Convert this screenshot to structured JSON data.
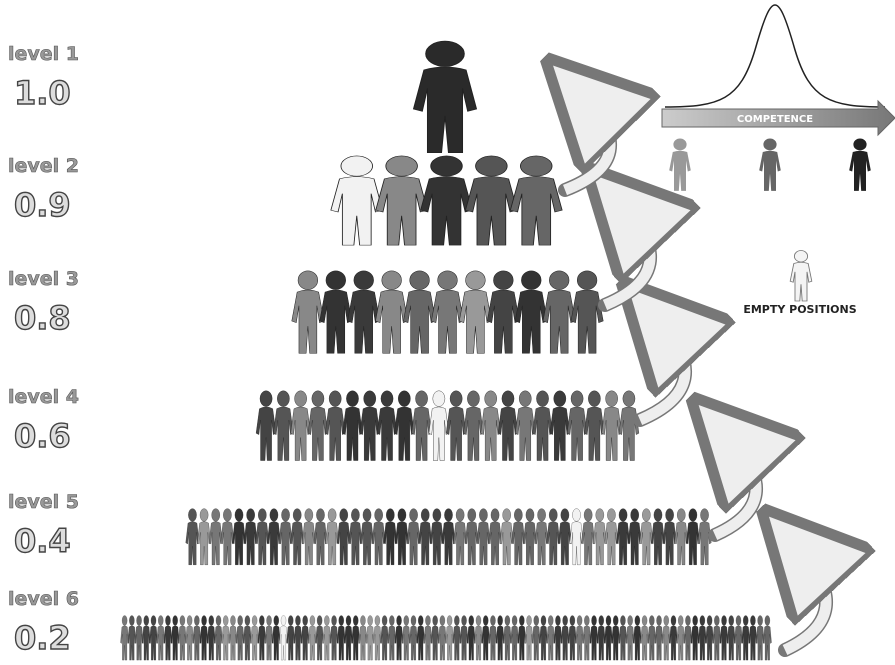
{
  "levels": [
    {
      "name": "level 1",
      "score": "1.0"
    },
    {
      "name": "level 2",
      "score": "0.9"
    },
    {
      "name": "level 3",
      "score": "0.8"
    },
    {
      "name": "level 4",
      "score": "0.6"
    },
    {
      "name": "level 5",
      "score": "0.4"
    },
    {
      "name": "level 6",
      "score": "0.2"
    }
  ],
  "legend": {
    "axis_label": "COMPETENCE",
    "empty_label": "EMPTY POSITIONS"
  }
}
